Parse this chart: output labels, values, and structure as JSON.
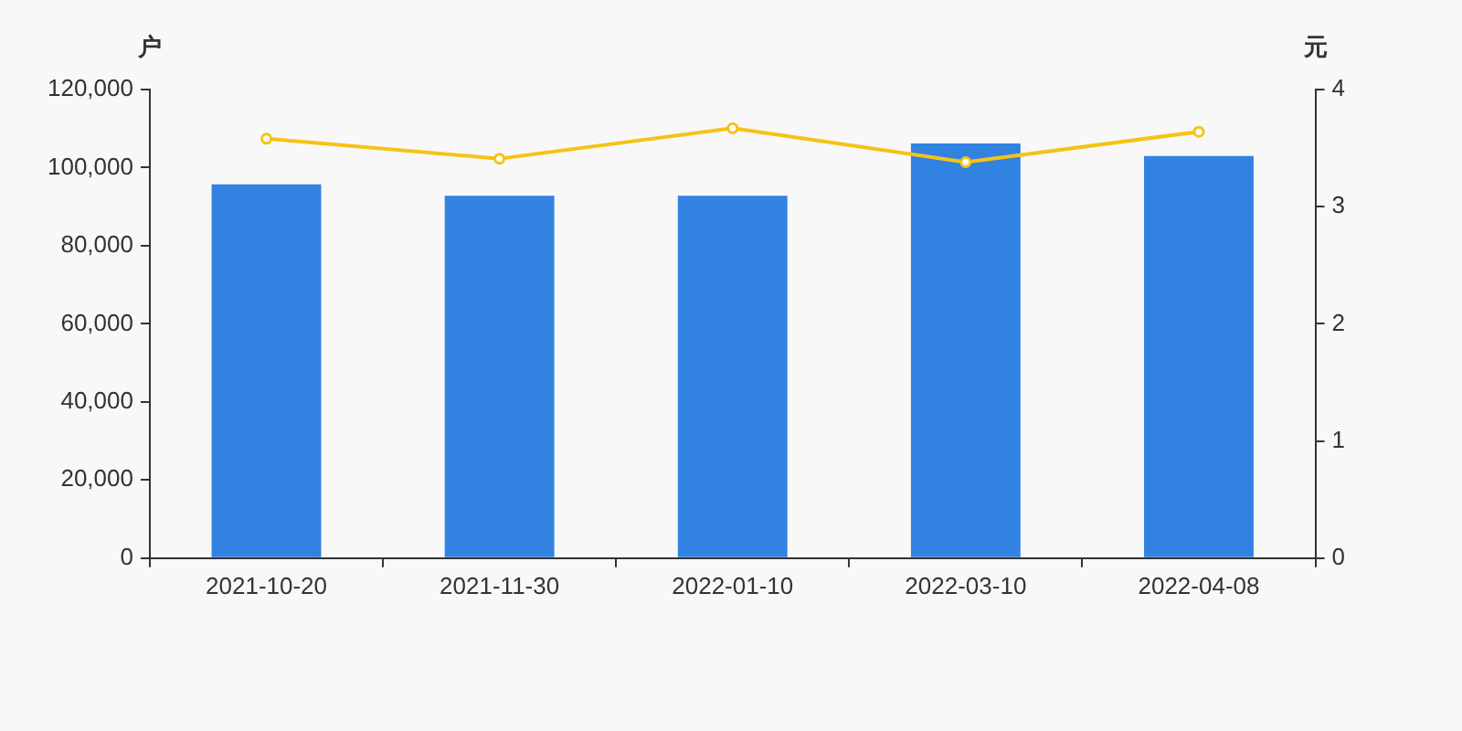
{
  "chart_data": {
    "type": "bar",
    "ylabel": "户",
    "y2label": "元",
    "categories": [
      "2021-10-20",
      "2021-11-30",
      "2022-01-10",
      "2022-03-10",
      "2022-04-08"
    ],
    "series": [
      {
        "color": "#3282e2",
        "values": [
          95700,
          92800,
          92800,
          106200,
          103000
        ]
      },
      {
        "type": "line",
        "axis": "y2",
        "color": "#f5c316",
        "marker": "circle",
        "values": [
          3.58,
          3.41,
          3.67,
          3.38,
          3.64
        ]
      }
    ],
    "ylim": [
      0,
      120000
    ],
    "yticks": [
      0,
      {
        "value": 20000,
        "label": "20,000"
      },
      {
        "value": 40000,
        "label": "40,000"
      },
      {
        "value": 60000,
        "label": "60,000"
      },
      {
        "value": 80000,
        "label": "80,000"
      },
      {
        "value": 100000,
        "label": "100,000"
      },
      {
        "value": 120000,
        "label": "120,000"
      }
    ],
    "y2lim": [
      0,
      4
    ],
    "y2ticks": [
      0,
      1,
      2,
      3,
      4
    ]
  }
}
